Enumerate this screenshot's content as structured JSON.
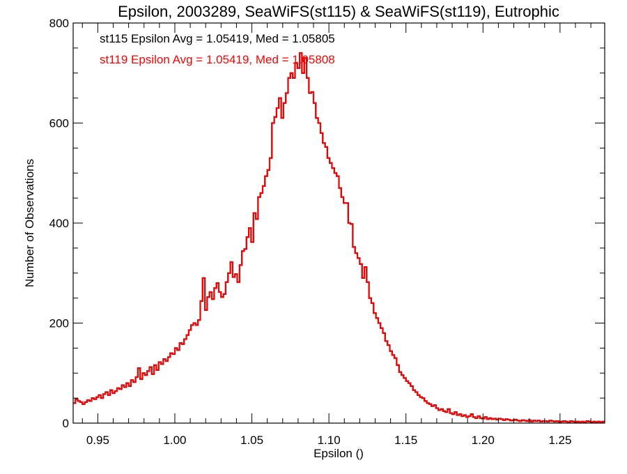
{
  "chart_data": {
    "type": "line",
    "style": "histogram-step",
    "title": "Epsilon, 2003289, SeaWiFS(st115) & SeaWiFS(st119), Eutrophic",
    "xlabel": "Epsilon ()",
    "ylabel": "Number of Observations",
    "xlim": [
      0.934,
      1.279
    ],
    "ylim": [
      0,
      800
    ],
    "grid": false,
    "x_ticks": [
      0.95,
      1.0,
      1.05,
      1.1,
      1.15,
      1.2,
      1.25
    ],
    "x_tick_labels": [
      "0.95",
      "1.00",
      "1.05",
      "1.10",
      "1.15",
      "1.20",
      "1.25"
    ],
    "x_minor_step": 0.01,
    "y_ticks": [
      0,
      200,
      400,
      600,
      800
    ],
    "y_tick_labels": [
      "0",
      "200",
      "400",
      "600",
      "800"
    ],
    "y_minor_step": 50,
    "annotations": [
      {
        "text": "st115 Epsilon Avg = 1.05419, Med = 1.05805",
        "color": "#000000",
        "position": "top-left"
      },
      {
        "text": "st119 Epsilon Avg = 1.05419, Med = 1.05808",
        "color": "#ff0000",
        "position": "top-left"
      }
    ],
    "bin_start": 0.934,
    "bin_width": 0.0015,
    "series": [
      {
        "name": "st115",
        "color": "#000000",
        "values": [
          40,
          48,
          44,
          42,
          38,
          42,
          46,
          44,
          50,
          48,
          52,
          56,
          50,
          58,
          62,
          56,
          66,
          60,
          64,
          70,
          68,
          76,
          72,
          80,
          74,
          86,
          82,
          92,
          110,
          88,
          100,
          96,
          104,
          112,
          98,
          116,
          106,
          122,
          118,
          128,
          124,
          132,
          140,
          138,
          150,
          146,
          160,
          158,
          168,
          176,
          186,
          196,
          200,
          196,
          206,
          244,
          290,
          226,
          252,
          262,
          248,
          270,
          280,
          262,
          252,
          258,
          282,
          300,
          322,
          292,
          298,
          282,
          316,
          344,
          348,
          372,
          390,
          362,
          420,
          408,
          452,
          460,
          474,
          494,
          506,
          530,
          600,
          612,
          630,
          650,
          610,
          640,
          660,
          690,
          700,
          690,
          720,
          710,
          740,
          700,
          730,
          690,
          660,
          662,
          640,
          610,
          600,
          580,
          560,
          552,
          530,
          520,
          510,
          500,
          494,
          470,
          452,
          440,
          440,
          400,
          398,
          352,
          340,
          330,
          318,
          290,
          312,
          282,
          250,
          240,
          220,
          210,
          200,
          190,
          180,
          164,
          156,
          144,
          136,
          130,
          116,
          102,
          96,
          90,
          84,
          80,
          74,
          66,
          62,
          56,
          52,
          50,
          44,
          40,
          38,
          34,
          36,
          30,
          26,
          28,
          24,
          22,
          28,
          20,
          18,
          22,
          16,
          18,
          14,
          16,
          12,
          14,
          18,
          12,
          10,
          14,
          10,
          9,
          12,
          8,
          10,
          8,
          9,
          7,
          9,
          8,
          6,
          8,
          7,
          5,
          6,
          7,
          5,
          4,
          6,
          5,
          4,
          6,
          3,
          5,
          4,
          5,
          3,
          4,
          4,
          3,
          5,
          4,
          3,
          4,
          2,
          3,
          4,
          3,
          2,
          4,
          3,
          2,
          3,
          2,
          3,
          2,
          4,
          3,
          2,
          3,
          2,
          3,
          2,
          3
        ]
      },
      {
        "name": "st119",
        "color": "#ff0000",
        "values": [
          40,
          48,
          44,
          42,
          38,
          42,
          46,
          44,
          50,
          48,
          52,
          56,
          50,
          58,
          62,
          56,
          66,
          60,
          64,
          70,
          68,
          76,
          72,
          80,
          74,
          86,
          82,
          92,
          110,
          88,
          100,
          96,
          104,
          112,
          98,
          116,
          106,
          122,
          118,
          128,
          124,
          132,
          140,
          138,
          150,
          146,
          160,
          158,
          168,
          176,
          186,
          196,
          200,
          196,
          206,
          244,
          290,
          226,
          252,
          262,
          248,
          270,
          280,
          262,
          252,
          258,
          282,
          300,
          322,
          292,
          298,
          282,
          316,
          344,
          348,
          372,
          390,
          362,
          420,
          408,
          452,
          460,
          474,
          494,
          506,
          530,
          600,
          612,
          630,
          650,
          610,
          640,
          660,
          690,
          700,
          690,
          720,
          710,
          740,
          700,
          730,
          690,
          660,
          662,
          640,
          610,
          600,
          580,
          560,
          552,
          530,
          520,
          510,
          500,
          494,
          470,
          452,
          440,
          440,
          400,
          398,
          352,
          340,
          330,
          318,
          290,
          312,
          282,
          250,
          240,
          220,
          210,
          200,
          190,
          180,
          164,
          156,
          144,
          136,
          130,
          116,
          102,
          96,
          90,
          84,
          80,
          74,
          66,
          62,
          56,
          52,
          50,
          44,
          40,
          38,
          34,
          36,
          30,
          26,
          28,
          24,
          22,
          28,
          20,
          18,
          22,
          16,
          18,
          14,
          16,
          12,
          14,
          18,
          12,
          10,
          14,
          10,
          9,
          12,
          8,
          10,
          8,
          9,
          7,
          9,
          8,
          6,
          8,
          7,
          5,
          6,
          7,
          5,
          4,
          6,
          5,
          4,
          6,
          3,
          5,
          4,
          5,
          3,
          4,
          4,
          3,
          5,
          4,
          3,
          4,
          2,
          3,
          4,
          3,
          2,
          4,
          3,
          2,
          3,
          2,
          3,
          2,
          4,
          3,
          2,
          3,
          2,
          3,
          2,
          3
        ]
      }
    ]
  }
}
